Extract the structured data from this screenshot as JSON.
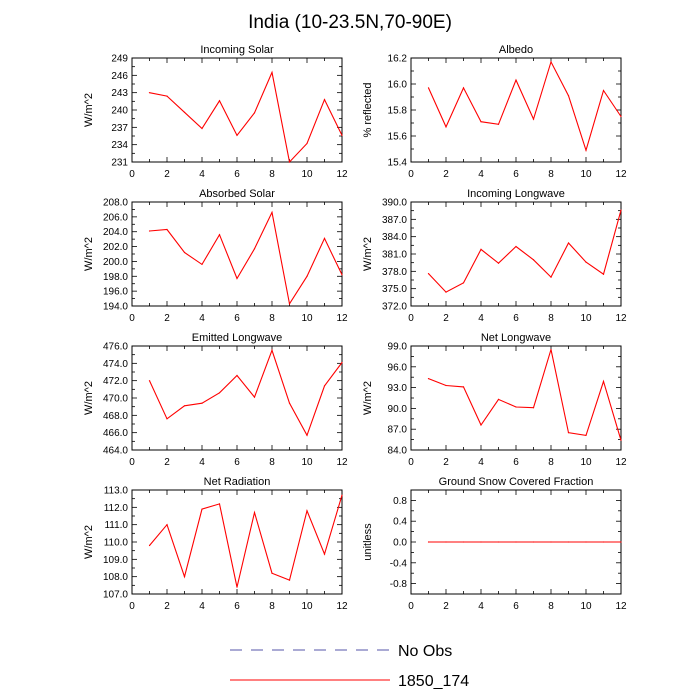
{
  "figure_title": "India (10-23.5N,70-90E)",
  "legend": {
    "entries": [
      {
        "label": "No Obs",
        "color": "#5555aa",
        "style": "dashed"
      },
      {
        "label": "1850_174",
        "color": "#ff0000",
        "style": "solid"
      }
    ]
  },
  "colors": {
    "series": "#ff0000",
    "axis": "#000000"
  },
  "chart_data": [
    {
      "type": "line",
      "title": "Incoming Solar",
      "ylabel": "W/m^2",
      "x": [
        1,
        2,
        3,
        4,
        5,
        6,
        7,
        8,
        9,
        10,
        11,
        12
      ],
      "values": [
        243.0,
        242.4,
        239.6,
        236.8,
        241.6,
        235.6,
        239.5,
        246.5,
        231.0,
        234.2,
        241.8,
        235.6
      ],
      "xlim": [
        0,
        12
      ],
      "ylim": [
        231,
        249
      ],
      "yticks": [
        231,
        234,
        237,
        240,
        243,
        246,
        249
      ],
      "ytick_labels": [
        "231",
        "234",
        "237",
        "240",
        "243",
        "246",
        "249"
      ],
      "xticks": [
        0,
        2,
        4,
        6,
        8,
        10,
        12
      ],
      "xtick_labels": [
        "0",
        "2",
        "4",
        "6",
        "8",
        "10",
        "12"
      ]
    },
    {
      "type": "line",
      "title": "Albedo",
      "ylabel": "% reflected",
      "x": [
        1,
        2,
        3,
        4,
        5,
        6,
        7,
        8,
        9,
        10,
        11,
        12
      ],
      "values": [
        15.97,
        15.67,
        15.97,
        15.71,
        15.69,
        16.03,
        15.73,
        16.17,
        15.91,
        15.49,
        15.95,
        15.75
      ],
      "xlim": [
        0,
        12
      ],
      "ylim": [
        15.4,
        16.2
      ],
      "yticks": [
        15.4,
        15.6,
        15.8,
        16.0,
        16.2
      ],
      "ytick_labels": [
        "15.4",
        "15.6",
        "15.8",
        "16.0",
        "16.2"
      ],
      "xticks": [
        0,
        2,
        4,
        6,
        8,
        10,
        12
      ],
      "xtick_labels": [
        "0",
        "2",
        "4",
        "6",
        "8",
        "10",
        "12"
      ]
    },
    {
      "type": "line",
      "title": "Absorbed Solar",
      "ylabel": "W/m^2",
      "x": [
        1,
        2,
        3,
        4,
        5,
        6,
        7,
        8,
        9,
        10,
        11,
        12
      ],
      "values": [
        204.1,
        204.3,
        201.2,
        199.6,
        203.6,
        197.7,
        201.7,
        206.6,
        194.3,
        198.0,
        203.1,
        198.2
      ],
      "xlim": [
        0,
        12
      ],
      "ylim": [
        194.0,
        208.0
      ],
      "yticks": [
        194,
        196,
        198,
        200,
        202,
        204,
        206,
        208
      ],
      "ytick_labels": [
        "194.0",
        "196.0",
        "198.0",
        "200.0",
        "202.0",
        "204.0",
        "206.0",
        "208.0"
      ],
      "xticks": [
        0,
        2,
        4,
        6,
        8,
        10,
        12
      ],
      "xtick_labels": [
        "0",
        "2",
        "4",
        "6",
        "8",
        "10",
        "12"
      ]
    },
    {
      "type": "line",
      "title": "Incoming Longwave",
      "ylabel": "W/m^2",
      "x": [
        1,
        2,
        3,
        4,
        5,
        6,
        7,
        8,
        9,
        10,
        11,
        12
      ],
      "values": [
        377.6,
        374.4,
        376.0,
        381.8,
        379.4,
        382.3,
        380.0,
        377.0,
        382.9,
        379.6,
        377.5,
        388.6
      ],
      "xlim": [
        0,
        12
      ],
      "ylim": [
        372.0,
        390.0
      ],
      "yticks": [
        372,
        375,
        378,
        381,
        384,
        387,
        390
      ],
      "ytick_labels": [
        "372.0",
        "375.0",
        "378.0",
        "381.0",
        "384.0",
        "387.0",
        "390.0"
      ],
      "xticks": [
        0,
        2,
        4,
        6,
        8,
        10,
        12
      ],
      "xtick_labels": [
        "0",
        "2",
        "4",
        "6",
        "8",
        "10",
        "12"
      ]
    },
    {
      "type": "line",
      "title": "Emitted Longwave",
      "ylabel": "W/m^2",
      "x": [
        1,
        2,
        3,
        4,
        5,
        6,
        7,
        8,
        9,
        10,
        11,
        12
      ],
      "values": [
        472.0,
        467.6,
        469.1,
        469.4,
        470.6,
        472.6,
        470.1,
        475.5,
        469.4,
        465.7,
        471.4,
        474.1
      ],
      "xlim": [
        0,
        12
      ],
      "ylim": [
        464.0,
        476.0
      ],
      "yticks": [
        464,
        466,
        468,
        470,
        472,
        474,
        476
      ],
      "ytick_labels": [
        "464.0",
        "466.0",
        "468.0",
        "470.0",
        "472.0",
        "474.0",
        "476.0"
      ],
      "xticks": [
        0,
        2,
        4,
        6,
        8,
        10,
        12
      ],
      "xtick_labels": [
        "0",
        "2",
        "4",
        "6",
        "8",
        "10",
        "12"
      ]
    },
    {
      "type": "line",
      "title": "Net Longwave",
      "ylabel": "W/m^2",
      "x": [
        1,
        2,
        3,
        4,
        5,
        6,
        7,
        8,
        9,
        10,
        11,
        12
      ],
      "values": [
        94.3,
        93.3,
        93.1,
        87.6,
        91.3,
        90.2,
        90.1,
        98.5,
        86.5,
        86.1,
        93.9,
        85.4
      ],
      "xlim": [
        0,
        12
      ],
      "ylim": [
        84.0,
        99.0
      ],
      "yticks": [
        84,
        87,
        90,
        93,
        96,
        99
      ],
      "ytick_labels": [
        "84.0",
        "87.0",
        "90.0",
        "93.0",
        "96.0",
        "99.0"
      ],
      "xticks": [
        0,
        2,
        4,
        6,
        8,
        10,
        12
      ],
      "xtick_labels": [
        "0",
        "2",
        "4",
        "6",
        "8",
        "10",
        "12"
      ]
    },
    {
      "type": "line",
      "title": "Net Radiation",
      "ylabel": "W/m^2",
      "x": [
        1,
        2,
        3,
        4,
        5,
        6,
        7,
        8,
        9,
        10,
        11,
        12
      ],
      "values": [
        109.8,
        111.0,
        108.0,
        111.9,
        112.2,
        107.4,
        111.7,
        108.2,
        107.8,
        111.8,
        109.3,
        112.7
      ],
      "xlim": [
        0,
        12
      ],
      "ylim": [
        107.0,
        113.0
      ],
      "yticks": [
        107,
        108,
        109,
        110,
        111,
        112,
        113
      ],
      "ytick_labels": [
        "107.0",
        "108.0",
        "109.0",
        "110.0",
        "111.0",
        "112.0",
        "113.0"
      ],
      "xticks": [
        0,
        2,
        4,
        6,
        8,
        10,
        12
      ],
      "xtick_labels": [
        "0",
        "2",
        "4",
        "6",
        "8",
        "10",
        "12"
      ]
    },
    {
      "type": "line",
      "title": "Ground Snow Covered Fraction",
      "ylabel": "unitless",
      "x": [
        1,
        2,
        3,
        4,
        5,
        6,
        7,
        8,
        9,
        10,
        11,
        12
      ],
      "values": [
        0,
        0,
        0,
        0,
        0,
        0,
        0,
        0,
        0,
        0,
        0,
        0
      ],
      "xlim": [
        0,
        12
      ],
      "ylim": [
        -1.0,
        1.0
      ],
      "yticks": [
        -0.8,
        -0.4,
        0.0,
        0.4,
        0.8
      ],
      "ytick_labels": [
        "-0.8",
        "-0.4",
        "0.0",
        "0.4",
        "0.8"
      ],
      "xticks": [
        0,
        2,
        4,
        6,
        8,
        10,
        12
      ],
      "xtick_labels": [
        "0",
        "2",
        "4",
        "6",
        "8",
        "10",
        "12"
      ]
    }
  ]
}
